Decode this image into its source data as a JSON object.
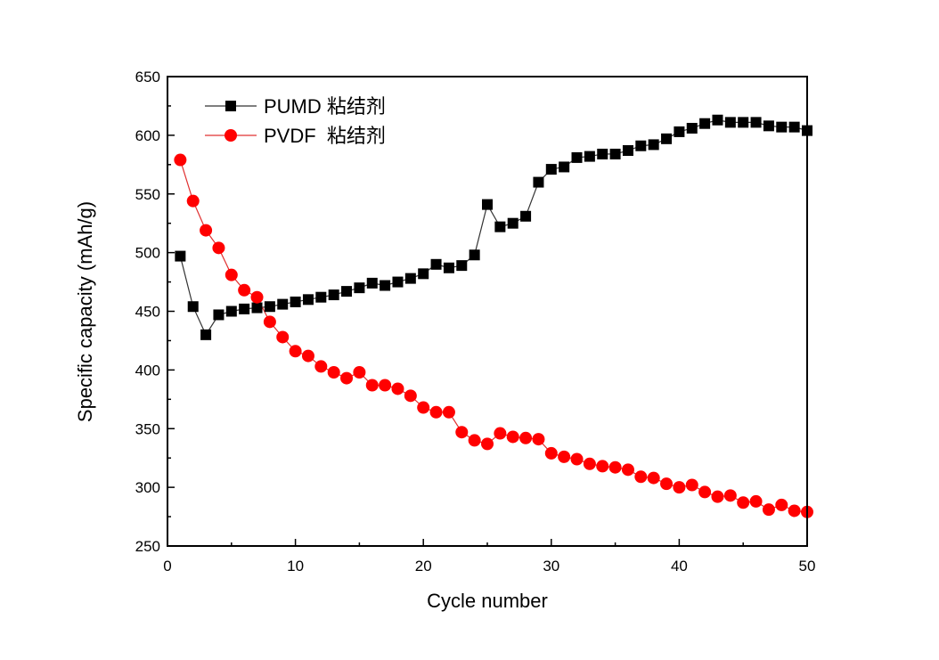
{
  "chart_data": {
    "type": "line",
    "title": "",
    "xlabel": "Cycle number",
    "ylabel": "Specific capacity (mAh/g)",
    "xlim": [
      0,
      50
    ],
    "ylim": [
      250,
      650
    ],
    "xticks": [
      "0",
      "10",
      "20",
      "30",
      "40",
      "50"
    ],
    "yticks": [
      "250",
      "300",
      "350",
      "400",
      "450",
      "500",
      "550",
      "600",
      "650"
    ],
    "grid": false,
    "legend_position": "top-left",
    "x": [
      1,
      2,
      3,
      4,
      5,
      6,
      7,
      8,
      9,
      10,
      11,
      12,
      13,
      14,
      15,
      16,
      17,
      18,
      19,
      20,
      21,
      22,
      23,
      24,
      25,
      26,
      27,
      28,
      29,
      30,
      31,
      32,
      33,
      34,
      35,
      36,
      37,
      38,
      39,
      40,
      41,
      42,
      43,
      44,
      45,
      46,
      47,
      48,
      49,
      50
    ],
    "series": [
      {
        "name": "PUMD 粘结剂",
        "color": "#000000",
        "line_color": "#333333",
        "marker": "square",
        "values": [
          497,
          454,
          430,
          447,
          450,
          452,
          453,
          454,
          456,
          458,
          460,
          462,
          464,
          467,
          470,
          474,
          472,
          475,
          478,
          482,
          490,
          487,
          489,
          498,
          541,
          522,
          525,
          531,
          560,
          571,
          573,
          581,
          582,
          584,
          584,
          587,
          591,
          592,
          597,
          603,
          606,
          610,
          613,
          611,
          611,
          611,
          608,
          607,
          607,
          604
        ]
      },
      {
        "name": "PVDF  粘结剂",
        "color": "#ff0000",
        "line_color": "#e03030",
        "marker": "circle",
        "values": [
          579,
          544,
          519,
          504,
          481,
          468,
          462,
          441,
          428,
          416,
          412,
          403,
          398,
          393,
          398,
          387,
          387,
          384,
          378,
          368,
          364,
          364,
          347,
          340,
          337,
          346,
          343,
          342,
          341,
          329,
          326,
          324,
          320,
          318,
          317,
          315,
          309,
          308,
          303,
          300,
          302,
          296,
          292,
          293,
          287,
          288,
          281,
          285,
          280,
          279
        ]
      }
    ]
  }
}
